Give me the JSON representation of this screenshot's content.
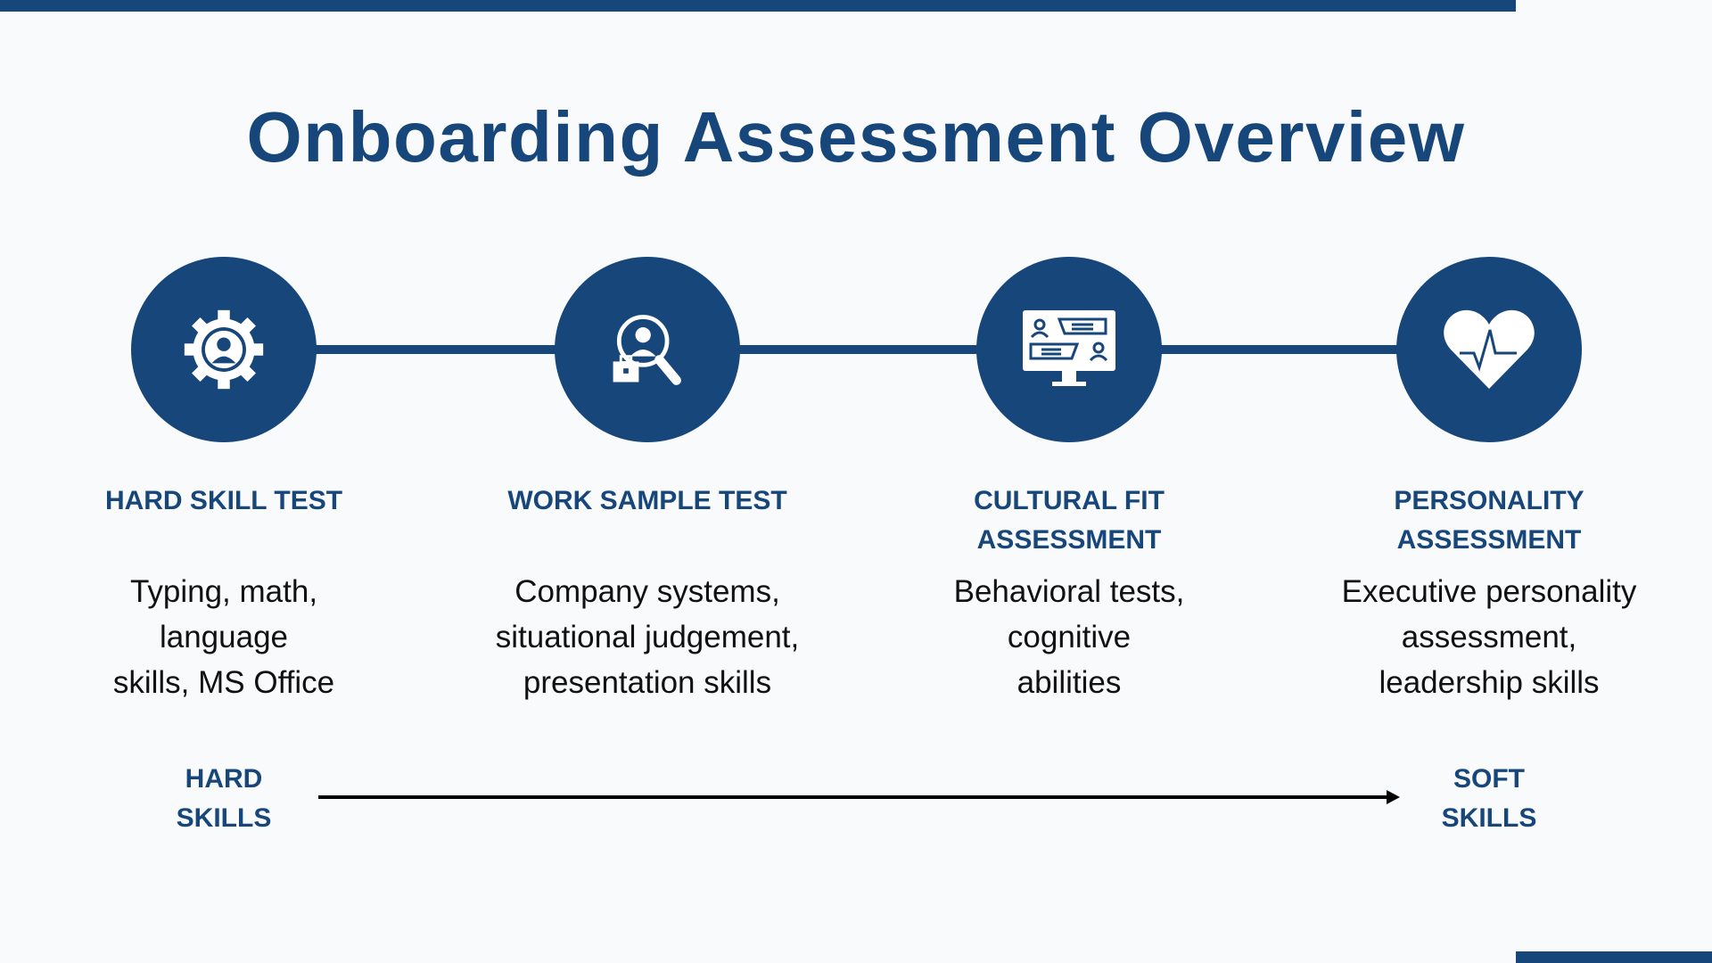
{
  "title": "Onboarding Assessment Overview",
  "colors": {
    "primary": "#17467a",
    "background": "#f8fafc",
    "text": "#111111"
  },
  "steps": [
    {
      "icon": "gear-person-icon",
      "label": "HARD SKILL TEST",
      "description": "Typing, math,\nlanguage\nskills, MS Office"
    },
    {
      "icon": "magnifier-person-briefcase-icon",
      "label": "WORK SAMPLE TEST",
      "description": "Company systems,\nsituational judgement,\npresentation skills"
    },
    {
      "icon": "monitor-chat-icon",
      "label": "CULTURAL FIT\nASSESSMENT",
      "description": "Behavioral tests,\ncognitive\nabilities"
    },
    {
      "icon": "heart-pulse-icon",
      "label": "PERSONALITY\nASSESSMENT",
      "description": "Executive personality\nassessment,\nleadership skills"
    }
  ],
  "scale": {
    "start": "HARD\nSKILLS",
    "end": "SOFT\nSKILLS"
  }
}
